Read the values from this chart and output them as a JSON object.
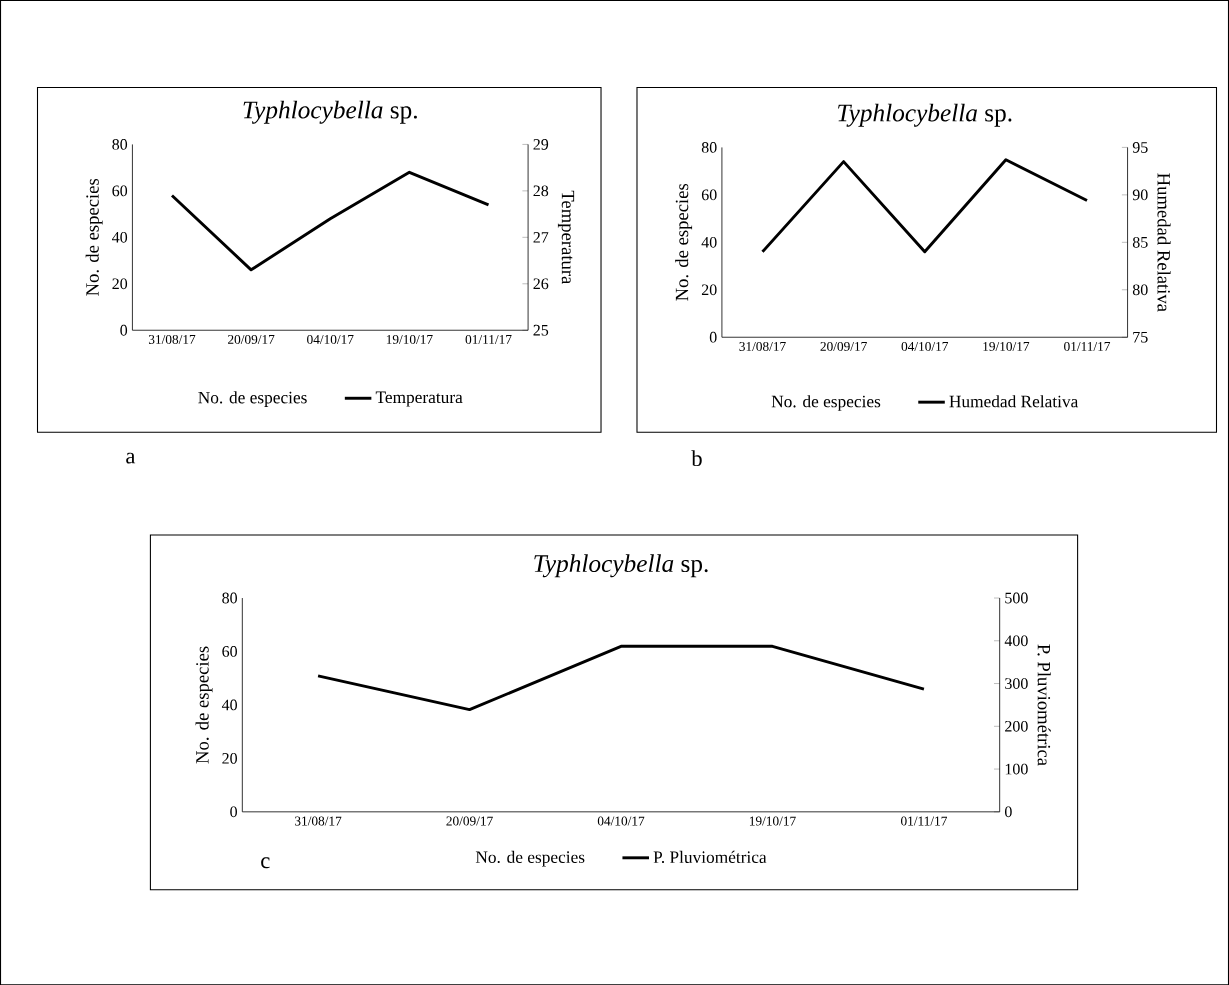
{
  "chart_data": [
    {
      "type": "line",
      "title": "*Typhlocybella* sp.",
      "categories": [
        "31/08/17",
        "20/09/17",
        "04/10/17",
        "19/10/17",
        "01/11/17"
      ],
      "ylabel": "No. de especies",
      "y2label": "Temperatura",
      "ylim": [
        0,
        80
      ],
      "yticks": [
        0,
        20,
        40,
        60,
        80
      ],
      "y2lim": [
        25,
        29
      ],
      "y2ticks": [
        25,
        26,
        27,
        28,
        29
      ],
      "legend": "bottom",
      "annotations": [
        "a"
      ],
      "series": [
        {
          "name": "No. de especies",
          "values": [
            null,
            null,
            null,
            null,
            null
          ]
        },
        {
          "name": "Temperatura",
          "color": "#000000",
          "axis": "y2",
          "values": [
            27.9,
            26.3,
            27.4,
            28.4,
            27.7
          ]
        }
      ]
    },
    {
      "type": "line",
      "title": "*Typhlocybella* sp.",
      "categories": [
        "31/08/17",
        "20/09/17",
        "04/10/17",
        "19/10/17",
        "01/11/17"
      ],
      "ylabel": "No. de especies",
      "y2label": "Humedad Relativa",
      "ylim": [
        0,
        80
      ],
      "yticks": [
        0,
        20,
        40,
        60,
        80
      ],
      "y2lim": [
        75,
        95
      ],
      "y2ticks": [
        75,
        80,
        85,
        90,
        95
      ],
      "legend": "bottom",
      "annotations": [
        "b"
      ],
      "series": [
        {
          "name": "No. de especies",
          "values": [
            null,
            null,
            null,
            null,
            null
          ]
        },
        {
          "name": "Humedad Relativa",
          "color": "#000000",
          "axis": "y2",
          "values": [
            84.0,
            93.5,
            84.0,
            93.7,
            89.4
          ]
        }
      ]
    },
    {
      "type": "line",
      "title": "*Typhlocybella* sp.",
      "categories": [
        "31/08/17",
        "20/09/17",
        "04/10/17",
        "19/10/17",
        "01/11/17"
      ],
      "ylabel": "No. de especies",
      "y2label": "P. Pluviométrica",
      "ylim": [
        0,
        80
      ],
      "yticks": [
        0,
        20,
        40,
        60,
        80
      ],
      "y2lim": [
        0,
        500
      ],
      "y2ticks": [
        0,
        100,
        200,
        300,
        400,
        500
      ],
      "legend": "bottom",
      "annotations": [
        "c"
      ],
      "series": [
        {
          "name": "No. de especies",
          "values": [
            null,
            null,
            null,
            null,
            null
          ]
        },
        {
          "name": "P. Pluviométrica",
          "color": "#000000",
          "axis": "y2",
          "values": [
            318,
            239,
            387,
            387,
            287
          ]
        }
      ]
    }
  ]
}
